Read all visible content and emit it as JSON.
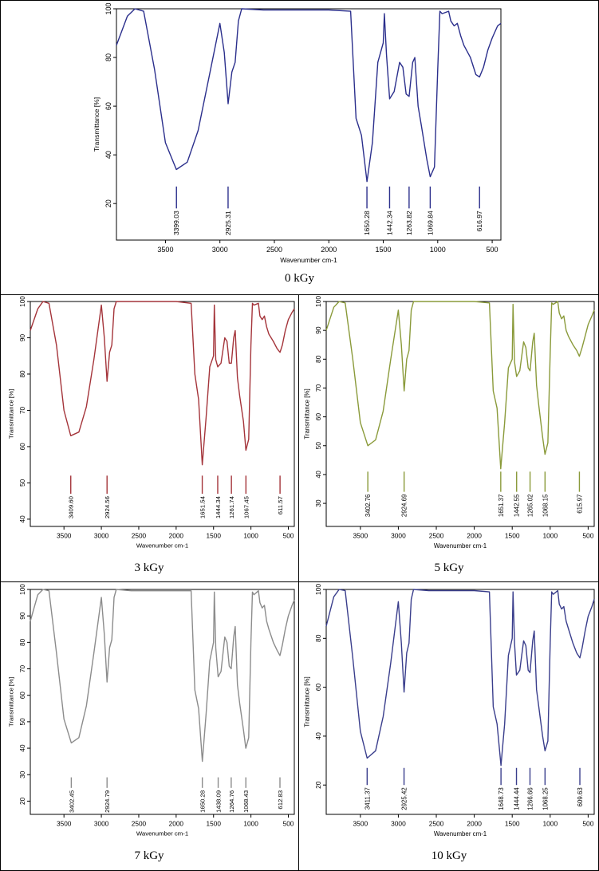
{
  "chart_data": [
    {
      "type": "line",
      "caption": "0 kGy",
      "color": "#2b2f8c",
      "xlabel": "Wavenumber cm-1",
      "ylabel": "Transmittance [%]",
      "xlim": [
        3950,
        420
      ],
      "ylim": [
        5,
        100
      ],
      "xticks": [
        3500,
        3000,
        2500,
        2000,
        1500,
        1000,
        500
      ],
      "yticks": [
        20,
        40,
        60,
        80,
        100
      ],
      "grid": false,
      "peaks": [
        {
          "x": 3399,
          "label": "3399.03"
        },
        {
          "x": 2925,
          "label": "2925.31"
        },
        {
          "x": 1650,
          "label": "1650.28"
        },
        {
          "x": 1442,
          "label": "1442.34"
        },
        {
          "x": 1263,
          "label": "1263.82"
        },
        {
          "x": 1069,
          "label": "1069.84"
        },
        {
          "x": 616,
          "label": "616.97"
        }
      ],
      "peak_marker_y": [
        18,
        27
      ],
      "x": [
        3950,
        3850,
        3780,
        3700,
        3600,
        3500,
        3400,
        3300,
        3200,
        3100,
        3000,
        2960,
        2925,
        2890,
        2860,
        2830,
        2800,
        2600,
        2000,
        1800,
        1750,
        1700,
        1650,
        1600,
        1550,
        1500,
        1490,
        1470,
        1442,
        1400,
        1350,
        1320,
        1290,
        1263,
        1230,
        1210,
        1180,
        1150,
        1100,
        1069,
        1030,
        1000,
        980,
        960,
        900,
        880,
        850,
        820,
        790,
        760,
        700,
        650,
        616,
        580,
        540,
        500,
        450,
        420
      ],
      "y": [
        85,
        97,
        100,
        99,
        75,
        45,
        34,
        37,
        50,
        72,
        94,
        82,
        61,
        74,
        78,
        95,
        100,
        99.5,
        99.5,
        99,
        55,
        48,
        29,
        45,
        78,
        86,
        98,
        81,
        63,
        66,
        78,
        76,
        65,
        64,
        78,
        80,
        60,
        52,
        38,
        31,
        35,
        75,
        99,
        98,
        99,
        95,
        93,
        94,
        89,
        85,
        80,
        73,
        72,
        76,
        83,
        88,
        93,
        94
      ]
    },
    {
      "type": "line",
      "caption": "3 kGy",
      "color": "#a4343a",
      "xlabel": "Wavenumber cm-1",
      "ylabel": "Transmittance [%]",
      "xlim": [
        3950,
        420
      ],
      "ylim": [
        38,
        100
      ],
      "xticks": [
        3500,
        3000,
        2500,
        2000,
        1500,
        1000,
        500
      ],
      "yticks": [
        40,
        50,
        60,
        70,
        80,
        90,
        100
      ],
      "grid": false,
      "peaks": [
        {
          "x": 3409,
          "label": "3409.60"
        },
        {
          "x": 2924,
          "label": "2924.56"
        },
        {
          "x": 1651,
          "label": "1651.54"
        },
        {
          "x": 1444,
          "label": "1444.34"
        },
        {
          "x": 1261,
          "label": "1261.74"
        },
        {
          "x": 1067,
          "label": "1067.45"
        },
        {
          "x": 611,
          "label": "611.57"
        }
      ],
      "peak_marker_y": [
        47,
        52
      ],
      "x": [
        3950,
        3850,
        3780,
        3700,
        3600,
        3500,
        3409,
        3300,
        3200,
        3100,
        3000,
        2960,
        2924,
        2890,
        2860,
        2830,
        2800,
        2600,
        2000,
        1800,
        1750,
        1700,
        1651,
        1600,
        1550,
        1500,
        1490,
        1470,
        1444,
        1400,
        1350,
        1320,
        1290,
        1261,
        1230,
        1210,
        1180,
        1150,
        1100,
        1067,
        1030,
        1000,
        980,
        960,
        900,
        880,
        850,
        820,
        790,
        760,
        700,
        650,
        611,
        580,
        540,
        500,
        450,
        420
      ],
      "y": [
        92,
        98,
        100,
        99.5,
        88,
        70,
        63,
        64,
        71,
        84,
        99,
        90,
        78,
        86,
        88,
        98,
        100,
        100,
        100,
        99.5,
        80,
        73,
        55,
        68,
        82,
        85,
        99,
        84,
        82,
        83,
        90,
        89,
        83,
        83,
        90,
        92,
        79,
        74,
        67,
        59,
        62,
        88,
        99.5,
        99,
        99.5,
        96,
        95,
        96,
        93,
        91,
        89,
        87,
        86,
        88,
        92,
        95,
        97,
        98
      ]
    },
    {
      "type": "line",
      "caption": "5 kGy",
      "color": "#8a9a3a",
      "xlabel": "Wavenumber cm-1",
      "ylabel": "Transmittance [%]",
      "xlim": [
        3950,
        420
      ],
      "ylim": [
        22,
        100
      ],
      "xticks": [
        3500,
        3000,
        2500,
        2000,
        1500,
        1000,
        500
      ],
      "yticks": [
        30,
        40,
        50,
        60,
        70,
        80,
        90,
        100
      ],
      "grid": false,
      "peaks": [
        {
          "x": 3402,
          "label": "3402.76"
        },
        {
          "x": 2924,
          "label": "2924.69"
        },
        {
          "x": 1651,
          "label": "1651.37"
        },
        {
          "x": 1442,
          "label": "1442.55"
        },
        {
          "x": 1265,
          "label": "1265.02"
        },
        {
          "x": 1068,
          "label": "1068.15"
        },
        {
          "x": 615,
          "label": "615.97"
        }
      ],
      "peak_marker_y": [
        34,
        41
      ],
      "x": [
        3950,
        3850,
        3780,
        3700,
        3600,
        3500,
        3402,
        3300,
        3200,
        3100,
        3000,
        2960,
        2924,
        2890,
        2860,
        2830,
        2800,
        2600,
        2000,
        1800,
        1750,
        1700,
        1651,
        1600,
        1550,
        1500,
        1490,
        1470,
        1442,
        1400,
        1350,
        1320,
        1290,
        1265,
        1230,
        1210,
        1180,
        1150,
        1100,
        1068,
        1030,
        1000,
        980,
        960,
        900,
        880,
        850,
        820,
        790,
        760,
        700,
        650,
        615,
        580,
        540,
        500,
        450,
        420
      ],
      "y": [
        90,
        98,
        100,
        99.5,
        80,
        58,
        50,
        52,
        62,
        80,
        97,
        85,
        69,
        80,
        83,
        97,
        100,
        100,
        100,
        99.5,
        69,
        63,
        42,
        58,
        77,
        80,
        99,
        79,
        74,
        76,
        86,
        84,
        77,
        76,
        86,
        89,
        71,
        64,
        53,
        47,
        51,
        82,
        99.5,
        99,
        100,
        96,
        94,
        95,
        90,
        88,
        85,
        83,
        81,
        84,
        88,
        92,
        95,
        97
      ]
    },
    {
      "type": "line",
      "caption": "7 kGy",
      "color": "#8c8c8c",
      "xlabel": "Wavenumber cm-1",
      "ylabel": "Transmittance [%]",
      "xlim": [
        3950,
        420
      ],
      "ylim": [
        15,
        100
      ],
      "xticks": [
        3500,
        3000,
        2500,
        2000,
        1500,
        1000,
        500
      ],
      "yticks": [
        20,
        30,
        40,
        50,
        60,
        70,
        80,
        90,
        100
      ],
      "grid": false,
      "peaks": [
        {
          "x": 3402,
          "label": "3402.45"
        },
        {
          "x": 2924,
          "label": "2924.79"
        },
        {
          "x": 1650,
          "label": "1650.28"
        },
        {
          "x": 1438,
          "label": "1438.09"
        },
        {
          "x": 1264,
          "label": "1264.76"
        },
        {
          "x": 1068,
          "label": "1068.43"
        },
        {
          "x": 612,
          "label": "612.83"
        }
      ],
      "peak_marker_y": [
        25,
        29
      ],
      "x": [
        3950,
        3850,
        3780,
        3700,
        3600,
        3500,
        3402,
        3300,
        3200,
        3100,
        3000,
        2960,
        2924,
        2890,
        2860,
        2830,
        2800,
        2600,
        2000,
        1800,
        1750,
        1700,
        1650,
        1600,
        1550,
        1500,
        1490,
        1470,
        1438,
        1400,
        1350,
        1320,
        1290,
        1264,
        1230,
        1210,
        1180,
        1150,
        1100,
        1068,
        1030,
        1000,
        980,
        960,
        900,
        880,
        850,
        820,
        790,
        760,
        700,
        650,
        612,
        580,
        540,
        500,
        450,
        420
      ],
      "y": [
        88,
        98,
        100,
        99.5,
        76,
        51,
        42,
        44,
        56,
        76,
        97,
        83,
        65,
        78,
        81,
        97,
        100,
        99.5,
        99.5,
        99.5,
        62,
        55,
        35,
        53,
        73,
        80,
        99,
        78,
        67,
        69,
        82,
        80,
        71,
        70,
        82,
        86,
        64,
        57,
        47,
        40,
        44,
        80,
        99,
        98,
        99.5,
        95,
        93,
        94,
        88,
        85,
        80,
        77,
        75,
        79,
        85,
        90,
        94,
        96
      ]
    },
    {
      "type": "line",
      "caption": "10 kGy",
      "color": "#3a3e8c",
      "xlabel": "Wavenumber cm-1",
      "ylabel": "Transmittance [%]",
      "xlim": [
        3950,
        420
      ],
      "ylim": [
        8,
        100
      ],
      "xticks": [
        3500,
        3000,
        2500,
        2000,
        1500,
        1000,
        500
      ],
      "yticks": [
        20,
        40,
        60,
        80,
        100
      ],
      "grid": false,
      "peaks": [
        {
          "x": 3411,
          "label": "3411.37"
        },
        {
          "x": 2925,
          "label": "2925.42"
        },
        {
          "x": 1648,
          "label": "1648.73"
        },
        {
          "x": 1444,
          "label": "1444.44"
        },
        {
          "x": 1266,
          "label": "1266.66"
        },
        {
          "x": 1068,
          "label": "1068.25"
        },
        {
          "x": 609,
          "label": "609.63"
        }
      ],
      "peak_marker_y": [
        20,
        27
      ],
      "x": [
        3950,
        3850,
        3780,
        3700,
        3600,
        3500,
        3411,
        3300,
        3200,
        3100,
        3000,
        2960,
        2925,
        2890,
        2860,
        2830,
        2800,
        2600,
        2000,
        1800,
        1750,
        1700,
        1648,
        1600,
        1550,
        1500,
        1490,
        1470,
        1444,
        1400,
        1350,
        1320,
        1290,
        1266,
        1230,
        1210,
        1180,
        1150,
        1100,
        1068,
        1030,
        1000,
        980,
        960,
        900,
        880,
        850,
        820,
        790,
        760,
        700,
        650,
        609,
        580,
        540,
        500,
        450,
        420
      ],
      "y": [
        85,
        97,
        100,
        99.5,
        72,
        42,
        31,
        34,
        48,
        70,
        95,
        78,
        58,
        74,
        78,
        96,
        100,
        99.5,
        99.5,
        99,
        52,
        45,
        28,
        45,
        73,
        80,
        99,
        78,
        65,
        67,
        79,
        77,
        67,
        66,
        79,
        83,
        59,
        52,
        40,
        34,
        38,
        78,
        99,
        98,
        99.5,
        94,
        92,
        93,
        87,
        84,
        78,
        74,
        72,
        76,
        83,
        89,
        93,
        96
      ]
    }
  ]
}
